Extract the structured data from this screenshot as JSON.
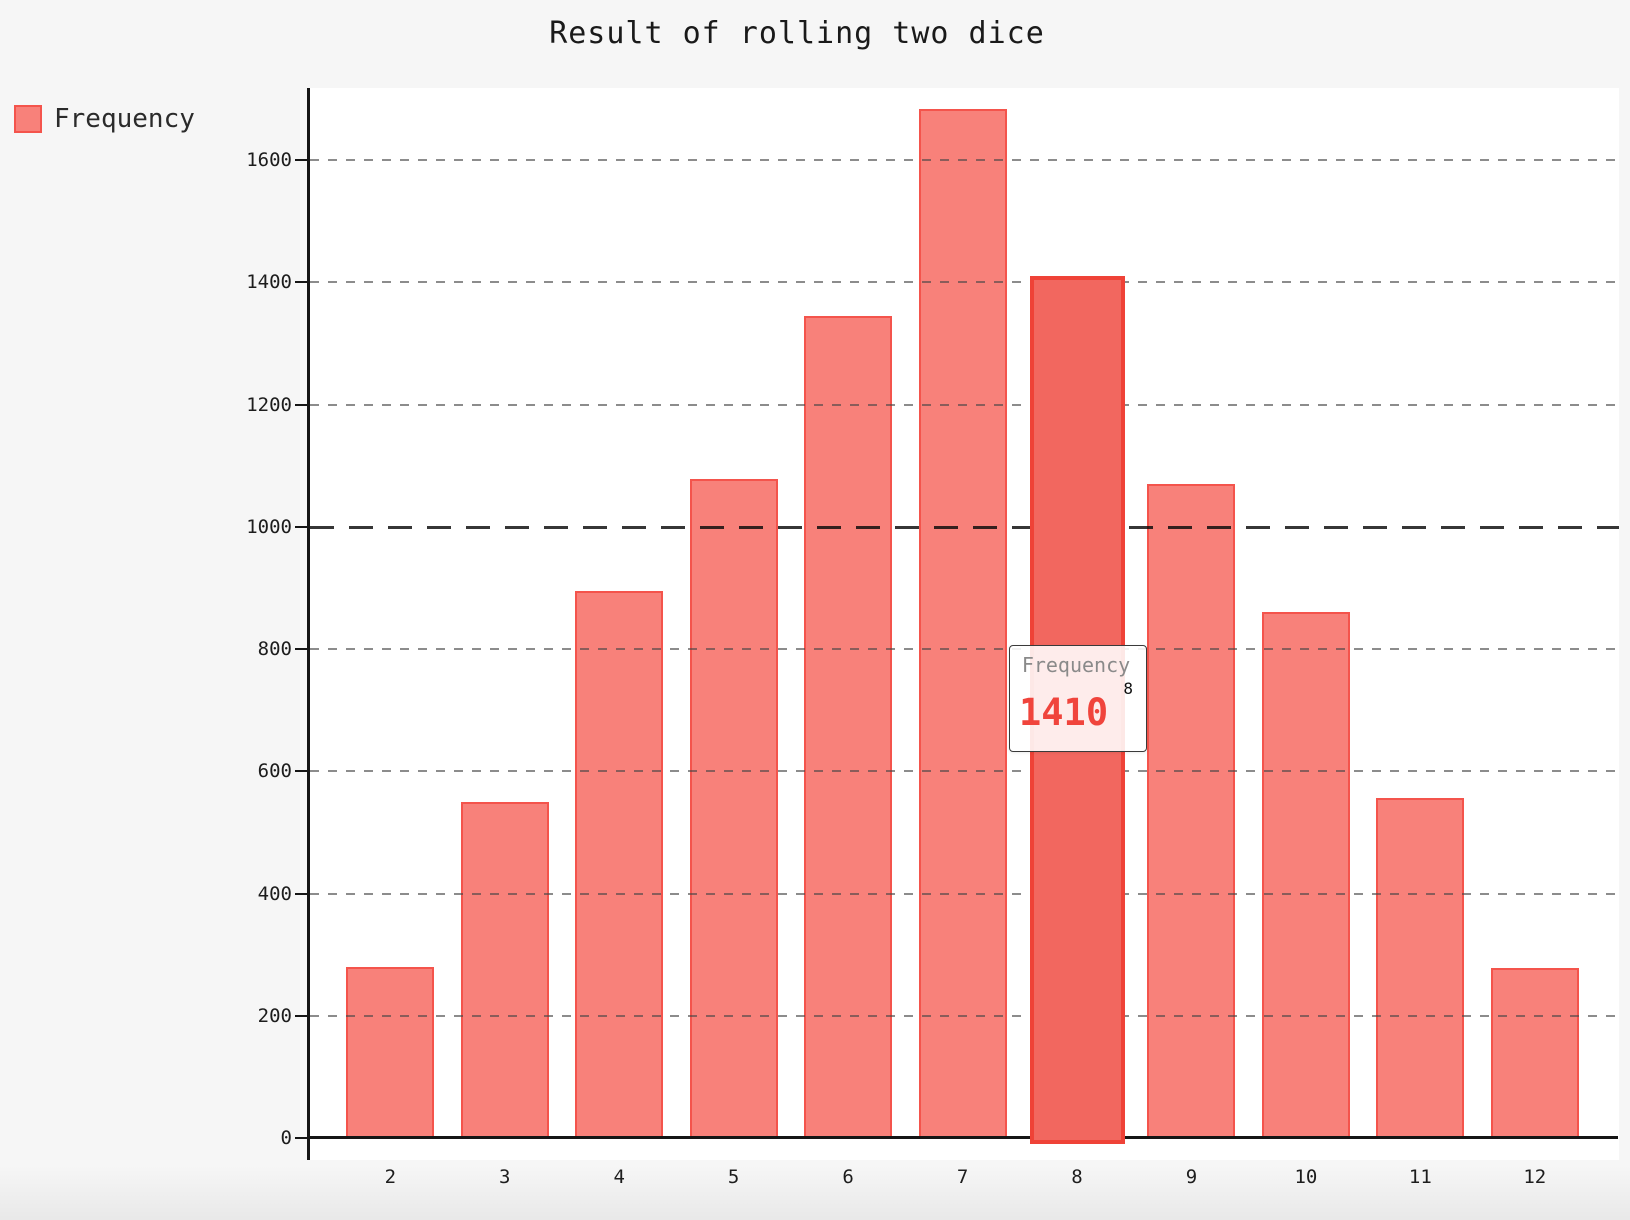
{
  "title": "Result of rolling two dice",
  "legend": {
    "label": "Frequency"
  },
  "chart_data": {
    "type": "bar",
    "title": "Result of rolling two dice",
    "categories": [
      "2",
      "3",
      "4",
      "5",
      "6",
      "7",
      "8",
      "9",
      "10",
      "11",
      "12"
    ],
    "series": [
      {
        "name": "Frequency",
        "values": [
          280,
          550,
          895,
          1078,
          1345,
          1683,
          1410,
          1070,
          860,
          556,
          278
        ]
      }
    ],
    "xlabel": "",
    "ylabel": "",
    "ylim": [
      0,
      1700
    ],
    "y_ticks": [
      0,
      200,
      400,
      600,
      800,
      1000,
      1200,
      1400,
      1600
    ],
    "grid": "horizontal-dashed",
    "emphasized_gridline": 1000,
    "legend_position": "top-left",
    "highlighted_category": "8"
  },
  "tooltip": {
    "series": "Frequency",
    "category": "8",
    "value": "1410"
  },
  "colors": {
    "bar_fill": "#F8817A",
    "bar_border": "#F4544C",
    "bar_active_fill": "#F2675F",
    "bar_active_border": "#EF4237",
    "grid": "#8C8C8C",
    "grid_emphasis": "#1F1F1F",
    "axis": "#151515",
    "tooltip_value": "#F0443C",
    "tooltip_label": "#8A8A8A",
    "page_bg": "#F6F6F6",
    "plot_bg": "#FFFFFF"
  }
}
